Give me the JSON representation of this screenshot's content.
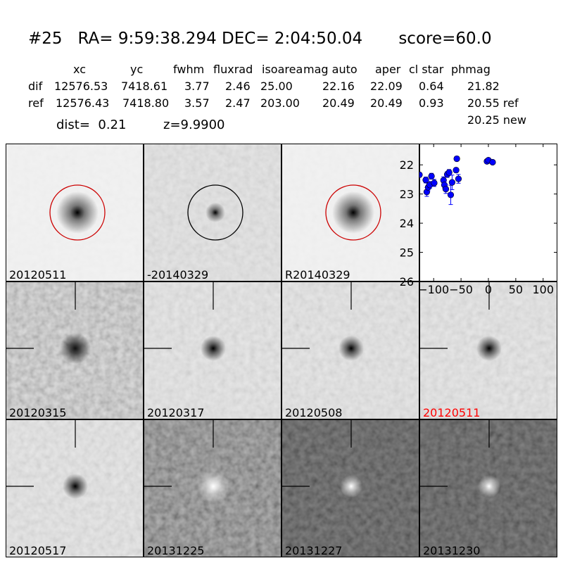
{
  "header": {
    "title": "#25   RA= 9:59:38.294 DEC= 2:04:50.04       score=60.0",
    "columns": [
      "xc",
      "yc",
      "fwhm",
      "fluxrad",
      "isoarea",
      "mag auto",
      "aper",
      "cl star",
      "phmag"
    ],
    "rows": [
      {
        "label": "dif",
        "values": [
          "12576.53",
          "7418.61",
          "3.77",
          "2.46",
          "25.00",
          "22.16",
          "22.09",
          "0.64",
          "21.82"
        ]
      },
      {
        "label": "ref",
        "values": [
          "12576.43",
          "7418.80",
          "3.57",
          "2.47",
          "203.00",
          "20.49",
          "20.49",
          "0.93",
          "20.55 ref"
        ]
      }
    ],
    "phmag_new": "20.25 new",
    "dist": "dist=  0.21",
    "z": "z=9.9900"
  },
  "stamps": [
    {
      "label": "20120511",
      "style": "light",
      "marker": "circle",
      "marker_color": "#cc0000",
      "label_color": "#000000"
    },
    {
      "label": "-20140329",
      "style": "diff",
      "marker": "circle",
      "marker_color": "#000000",
      "label_color": "#000000"
    },
    {
      "label": "R20140329",
      "style": "light",
      "marker": "circle",
      "marker_color": "#cc0000",
      "label_color": "#000000"
    },
    {
      "label": "20120315",
      "style": "noisy",
      "marker": "cross",
      "label_color": "#000000"
    },
    {
      "label": "20120317",
      "style": "medium",
      "marker": "cross",
      "label_color": "#000000"
    },
    {
      "label": "20120508",
      "style": "medium",
      "marker": "cross",
      "label_color": "#000000"
    },
    {
      "label": "20120511",
      "style": "medium",
      "marker": "cross",
      "label_color": "#ff0000"
    },
    {
      "label": "20120517",
      "style": "medium",
      "marker": "cross",
      "label_color": "#000000"
    },
    {
      "label": "20131225",
      "style": "dark1",
      "marker": "cross",
      "label_color": "#000000"
    },
    {
      "label": "20131227",
      "style": "dark",
      "marker": "cross",
      "label_color": "#000000"
    },
    {
      "label": "20131230",
      "style": "dark",
      "marker": "cross",
      "label_color": "#000000"
    }
  ],
  "chart_data": {
    "type": "scatter",
    "title": "",
    "xlabel": "",
    "ylabel": "",
    "xlim": [
      -126,
      126
    ],
    "ylim": [
      26,
      21.27
    ],
    "y_inverted": true,
    "xticks": [
      -100,
      -50,
      0,
      50,
      100
    ],
    "xtick_labels": [
      "−100",
      "−50",
      "0",
      "50",
      "100"
    ],
    "yticks": [
      22,
      23,
      24,
      25,
      26
    ],
    "ytick_labels": [
      "22",
      "23",
      "24",
      "25",
      "26"
    ],
    "grid": false,
    "marker_color": "#0000ff",
    "points": [
      {
        "x": -126,
        "y": 22.34,
        "err": 0.08
      },
      {
        "x": -114.4,
        "y": 22.52,
        "err": 0.1
      },
      {
        "x": -112.6,
        "y": 22.93,
        "err": 0.15
      },
      {
        "x": -110,
        "y": 22.77,
        "err": 0.12
      },
      {
        "x": -107,
        "y": 22.69,
        "err": 0.12
      },
      {
        "x": -104,
        "y": 22.39,
        "err": 0.1
      },
      {
        "x": -99,
        "y": 22.62,
        "err": 0.12
      },
      {
        "x": -82,
        "y": 22.53,
        "err": 0.12
      },
      {
        "x": -80.4,
        "y": 22.69,
        "err": 0.12
      },
      {
        "x": -77.8,
        "y": 22.83,
        "err": 0.15
      },
      {
        "x": -75.2,
        "y": 22.33,
        "err": 0.1
      },
      {
        "x": -71.8,
        "y": 22.26,
        "err": 0.1
      },
      {
        "x": -68.8,
        "y": 23.03,
        "err": 0.33
      },
      {
        "x": -66.3,
        "y": 22.6,
        "err": 0.25
      },
      {
        "x": -59,
        "y": 22.18,
        "err": 0.08
      },
      {
        "x": -57.7,
        "y": 21.79,
        "err": 0.08
      },
      {
        "x": -54.7,
        "y": 22.48,
        "err": 0.15
      },
      {
        "x": -2.6,
        "y": 21.88,
        "err": 0.05
      },
      {
        "x": 0,
        "y": 21.84,
        "err": 0.05
      },
      {
        "x": 7.7,
        "y": 21.91,
        "err": 0.04
      }
    ]
  }
}
